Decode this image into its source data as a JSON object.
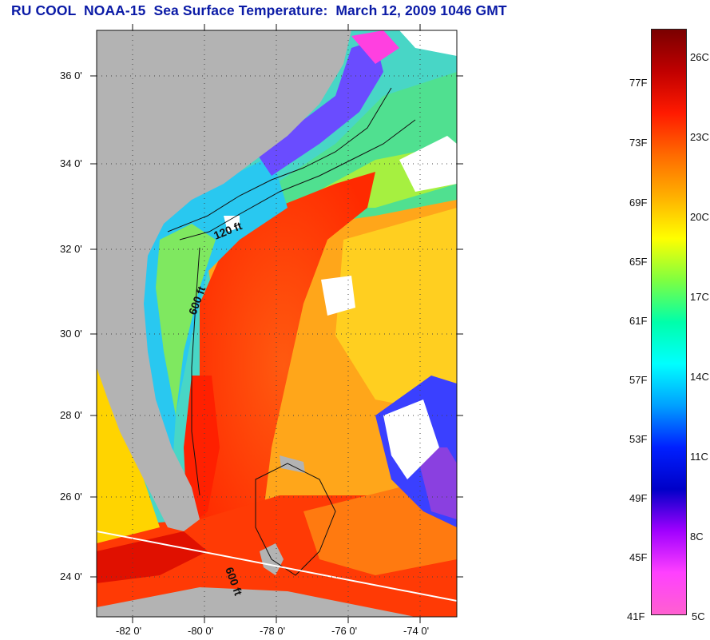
{
  "title": "RU COOL  NOAA-15  Sea Surface Temperature:  March 12, 2009 1046 GMT",
  "map": {
    "lon_ticks": [
      "-82 0'",
      "-80 0'",
      "-78 0'",
      "-76 0'",
      "-74 0'"
    ],
    "lat_ticks": [
      "36 0'",
      "34 0'",
      "32 0'",
      "30 0'",
      "28 0'",
      "26 0'",
      "24 0'"
    ],
    "lon_range": [
      -83,
      -73
    ],
    "lat_range": [
      23,
      37
    ],
    "land_color": "#b3b3b3",
    "cloud_color": "#ffffff",
    "isobath_labels": [
      {
        "text": "120 ft"
      },
      {
        "text": "600 ft"
      },
      {
        "text": "600 ft"
      }
    ]
  },
  "colorbar": {
    "fahrenheit_labels": [
      "77F",
      "73F",
      "69F",
      "65F",
      "61F",
      "57F",
      "53F",
      "49F",
      "45F",
      "41F"
    ],
    "celsius_labels": [
      "26C",
      "23C",
      "20C",
      "17C",
      "14C",
      "11C",
      "8C",
      "5C"
    ],
    "colors": [
      "#7a0000",
      "#c00000",
      "#ff1a00",
      "#ff6a00",
      "#ffb000",
      "#ffff00",
      "#7fff40",
      "#00ffaa",
      "#00ffff",
      "#00a0ff",
      "#0020ff",
      "#0000c8",
      "#a000ff",
      "#ff40ff",
      "#ff60d0"
    ]
  }
}
